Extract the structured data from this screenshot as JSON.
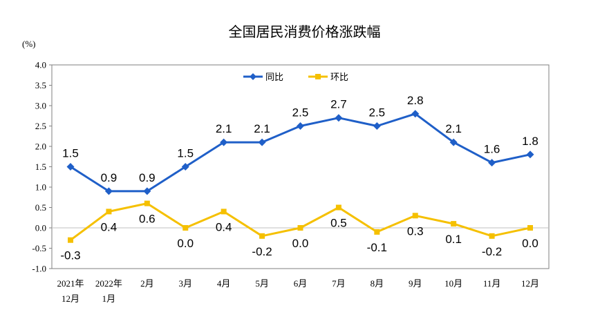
{
  "chart_data": {
    "type": "line",
    "title": "全国居民消费价格涨跌幅",
    "ylabel": "(%)",
    "xlabel": "",
    "ylim": [
      -1.0,
      4.0
    ],
    "y_ticks": [
      "4.0",
      "3.5",
      "3.0",
      "2.5",
      "2.0",
      "1.5",
      "1.0",
      "0.5",
      "0.0",
      "-0.5",
      "-1.0"
    ],
    "categories": [
      {
        "line1": "2021年",
        "line2": "12月"
      },
      {
        "line1": "2022年",
        "line2": "1月"
      },
      {
        "line1": "2月",
        "line2": ""
      },
      {
        "line1": "3月",
        "line2": ""
      },
      {
        "line1": "4月",
        "line2": ""
      },
      {
        "line1": "5月",
        "line2": ""
      },
      {
        "line1": "6月",
        "line2": ""
      },
      {
        "line1": "7月",
        "line2": ""
      },
      {
        "line1": "8月",
        "line2": ""
      },
      {
        "line1": "9月",
        "line2": ""
      },
      {
        "line1": "10月",
        "line2": ""
      },
      {
        "line1": "11月",
        "line2": ""
      },
      {
        "line1": "12月",
        "line2": ""
      }
    ],
    "series": [
      {
        "name": "同比",
        "color": "#1f5fc8",
        "marker": "diamond",
        "label_position": "above",
        "values": [
          1.5,
          0.9,
          0.9,
          1.5,
          2.1,
          2.1,
          2.5,
          2.7,
          2.5,
          2.8,
          2.1,
          1.6,
          1.8
        ],
        "labels": [
          "1.5",
          "0.9",
          "0.9",
          "1.5",
          "2.1",
          "2.1",
          "2.5",
          "2.7",
          "2.5",
          "2.8",
          "2.1",
          "1.6",
          "1.8"
        ]
      },
      {
        "name": "环比",
        "color": "#f5c000",
        "marker": "square",
        "label_position": "below",
        "values": [
          -0.3,
          0.4,
          0.6,
          0.0,
          0.4,
          -0.2,
          0.0,
          0.5,
          -0.1,
          0.3,
          0.1,
          -0.2,
          0.0
        ],
        "labels": [
          "-0.3",
          "0.4",
          "0.6",
          "0.0",
          "0.4",
          "-0.2",
          "0.0",
          "0.5",
          "-0.1",
          "0.3",
          "0.1",
          "-0.2",
          "0.0"
        ]
      }
    ],
    "legend_position": "top-center",
    "grid": false
  }
}
